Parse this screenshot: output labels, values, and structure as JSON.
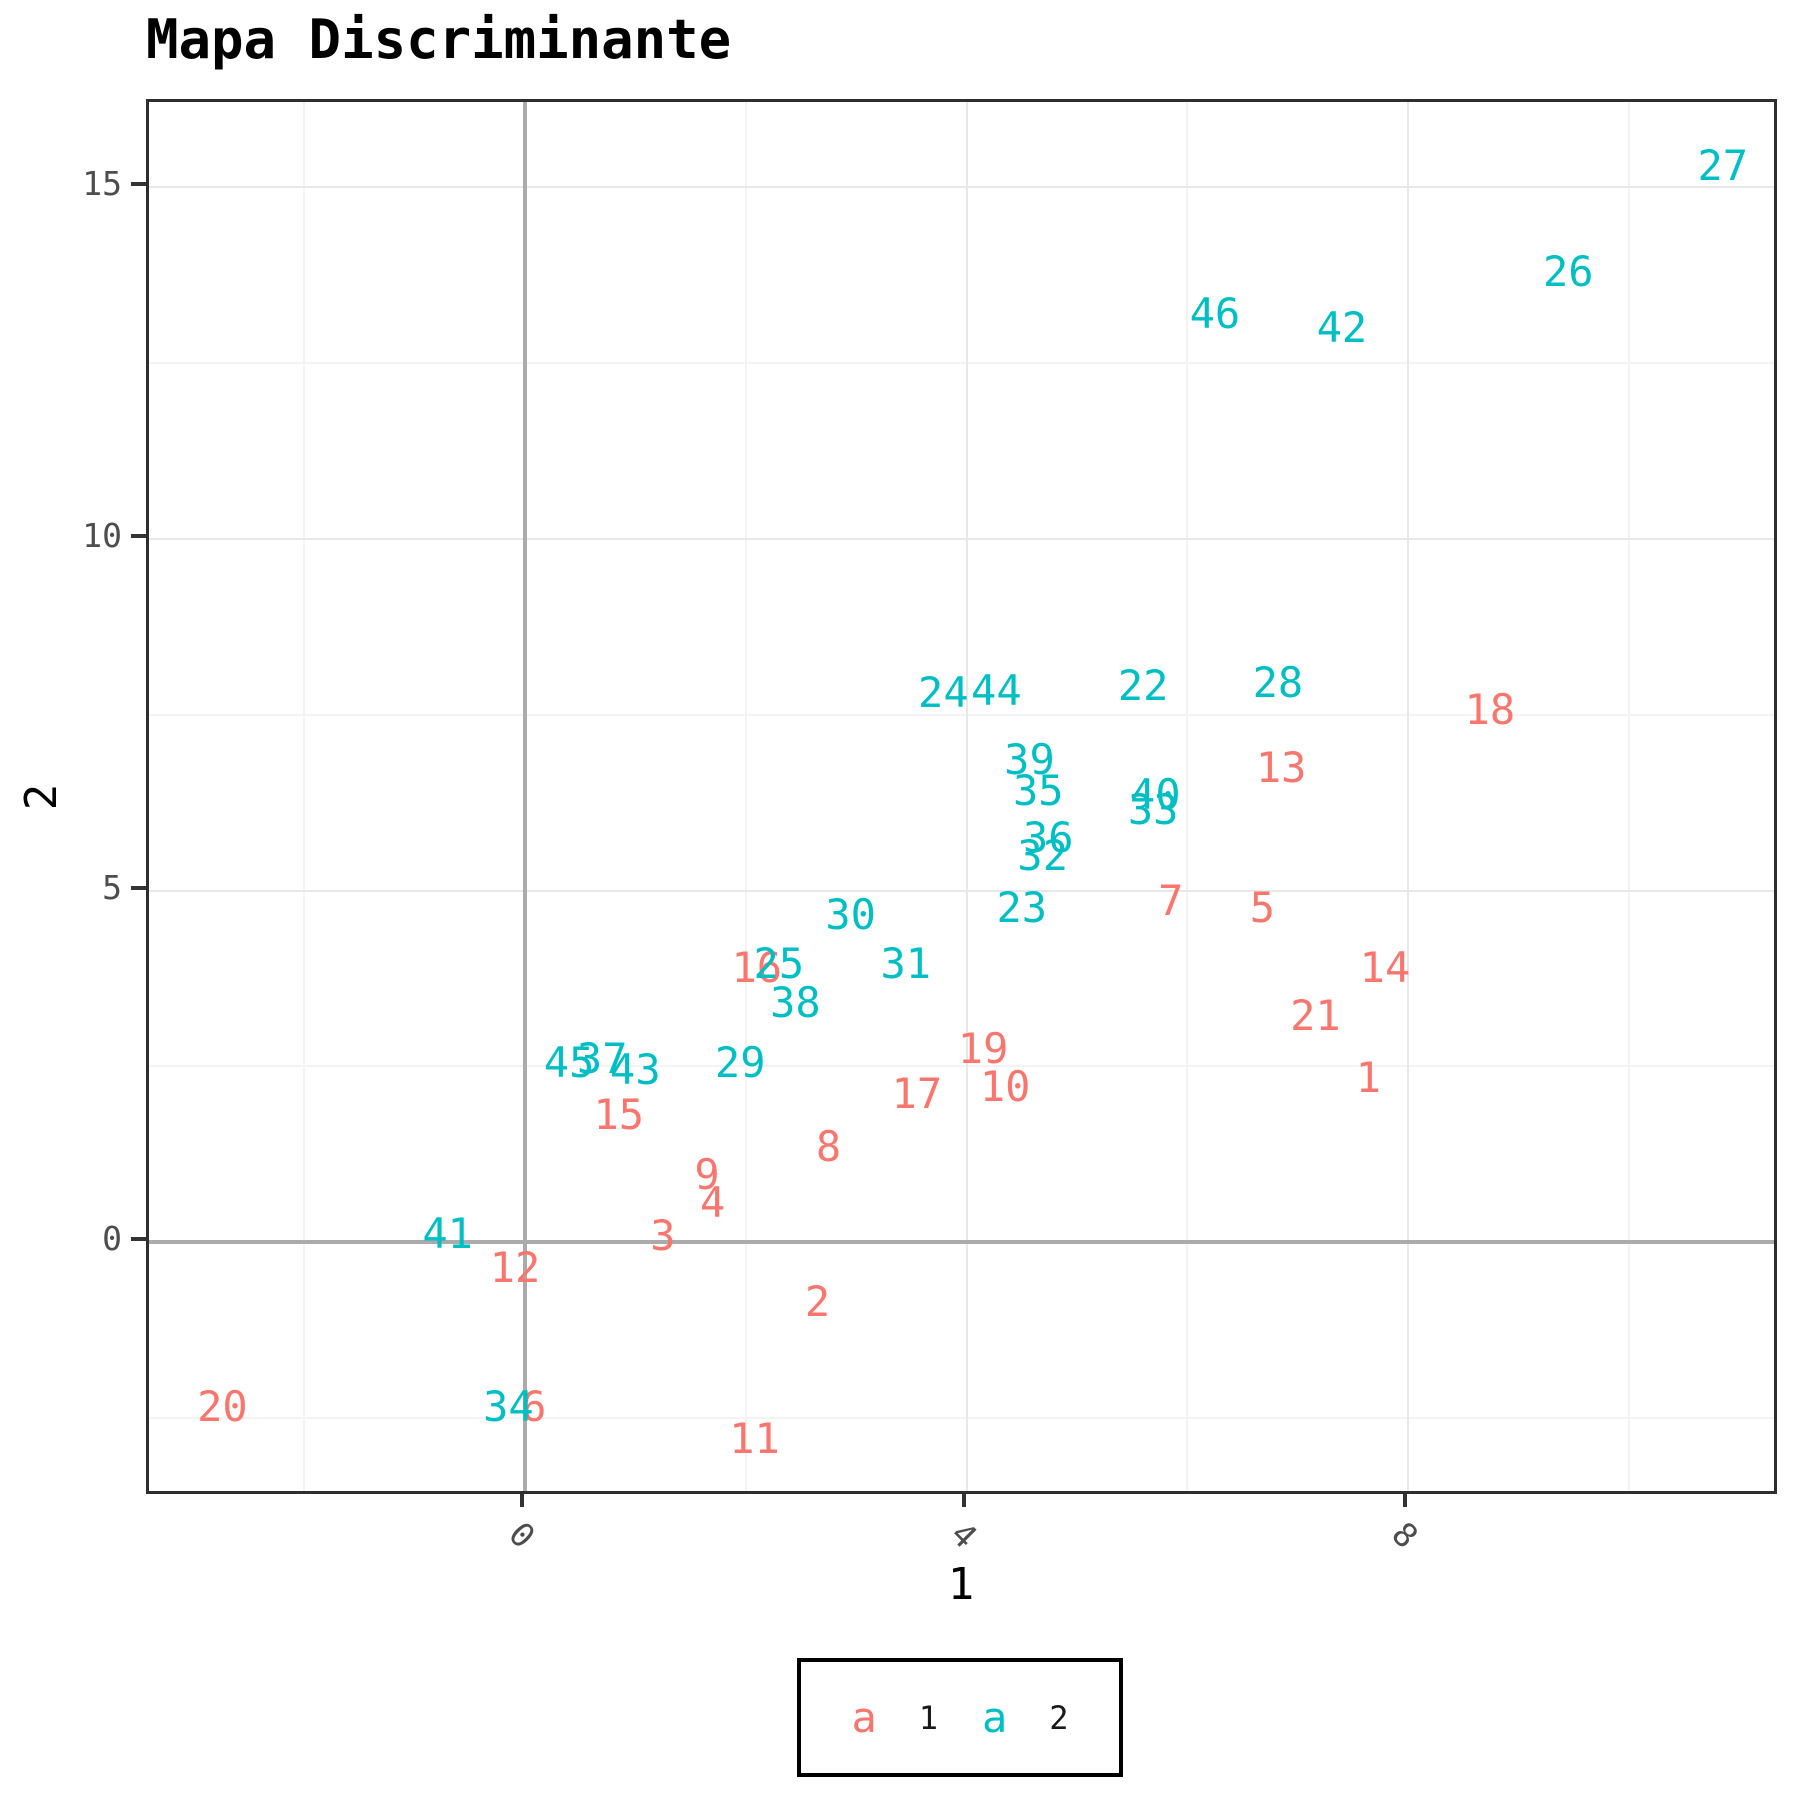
{
  "title": "Mapa Discriminante",
  "axes": {
    "x_title": "1",
    "y_title": "2",
    "x_ticks": [
      {
        "value": 0,
        "label": "0"
      },
      {
        "value": 4,
        "label": "4"
      },
      {
        "value": 8,
        "label": "8"
      }
    ],
    "y_ticks": [
      {
        "value": 0,
        "label": "0"
      },
      {
        "value": 5,
        "label": "5"
      },
      {
        "value": 10,
        "label": "10"
      },
      {
        "value": 15,
        "label": "15"
      }
    ]
  },
  "legend": {
    "items": [
      {
        "key": "a",
        "label": "1",
        "color": "#F8766D"
      },
      {
        "key": "a",
        "label": "2",
        "color": "#00BFC4"
      }
    ]
  },
  "colors": {
    "group1": "#F8766D",
    "group2": "#00BFC4",
    "axis_text": "#4d4d4d",
    "panel_border": "#2e2e2e",
    "grid_major": "#e8e8e8",
    "grid_minor": "#f3f3f3",
    "reference_line": "#ababab"
  },
  "chart_data": {
    "type": "scatter",
    "title": "Mapa Discriminante",
    "xlabel": "1",
    "ylabel": "2",
    "xlim": [
      -3.405,
      11.368
    ],
    "ylim": [
      -3.627,
      16.216
    ],
    "x_major": [
      0,
      4,
      8
    ],
    "x_minor": [
      -2,
      2,
      6,
      10
    ],
    "y_major": [
      0,
      5,
      10,
      15
    ],
    "y_minor": [
      -2.5,
      2.5,
      7.5,
      12.5
    ],
    "reference_lines": {
      "vline_x": 0,
      "hline_y": 0
    },
    "grid": true,
    "legend_position": "bottom",
    "point_geom": "text-label",
    "series": [
      {
        "name": "1",
        "color": "#F8766D",
        "points": [
          {
            "label": "1",
            "x": 7.64,
            "y": 2.33
          },
          {
            "label": "2",
            "x": 2.65,
            "y": -0.85
          },
          {
            "label": "3",
            "x": 1.25,
            "y": 0.08
          },
          {
            "label": "4",
            "x": 1.7,
            "y": 0.55
          },
          {
            "label": "5",
            "x": 6.68,
            "y": 4.75
          },
          {
            "label": "6",
            "x": 0.08,
            "y": -2.35
          },
          {
            "label": "7",
            "x": 5.85,
            "y": 4.85
          },
          {
            "label": "8",
            "x": 2.75,
            "y": 1.35
          },
          {
            "label": "9",
            "x": 1.65,
            "y": 0.95
          },
          {
            "label": "10",
            "x": 4.35,
            "y": 2.2
          },
          {
            "label": "11",
            "x": 2.08,
            "y": -2.8
          },
          {
            "label": "12",
            "x": -0.09,
            "y": -0.37
          },
          {
            "label": "13",
            "x": 6.85,
            "y": 6.74
          },
          {
            "label": "14",
            "x": 7.79,
            "y": 3.9
          },
          {
            "label": "15",
            "x": 0.85,
            "y": 1.8
          },
          {
            "label": "16",
            "x": 2.1,
            "y": 3.9
          },
          {
            "label": "17",
            "x": 3.55,
            "y": 2.1
          },
          {
            "label": "18",
            "x": 8.74,
            "y": 7.57
          },
          {
            "label": "19",
            "x": 4.15,
            "y": 2.75
          },
          {
            "label": "20",
            "x": -2.74,
            "y": -2.35
          },
          {
            "label": "21",
            "x": 7.16,
            "y": 3.21
          }
        ]
      },
      {
        "name": "2",
        "color": "#00BFC4",
        "points": [
          {
            "label": "22",
            "x": 5.6,
            "y": 7.91
          },
          {
            "label": "23",
            "x": 4.5,
            "y": 4.75
          },
          {
            "label": "24",
            "x": 3.79,
            "y": 7.81
          },
          {
            "label": "25",
            "x": 2.3,
            "y": 3.95
          },
          {
            "label": "26",
            "x": 9.45,
            "y": 13.8
          },
          {
            "label": "27",
            "x": 10.85,
            "y": 15.3
          },
          {
            "label": "28",
            "x": 6.82,
            "y": 7.95
          },
          {
            "label": "29",
            "x": 1.95,
            "y": 2.55
          },
          {
            "label": "30",
            "x": 2.95,
            "y": 4.65
          },
          {
            "label": "31",
            "x": 3.45,
            "y": 3.95
          },
          {
            "label": "32",
            "x": 4.69,
            "y": 5.49
          },
          {
            "label": "33",
            "x": 5.69,
            "y": 6.15
          },
          {
            "label": "34",
            "x": -0.15,
            "y": -2.35
          },
          {
            "label": "35",
            "x": 4.65,
            "y": 6.41
          },
          {
            "label": "36",
            "x": 4.74,
            "y": 5.75
          },
          {
            "label": "37",
            "x": 0.7,
            "y": 2.6
          },
          {
            "label": "38",
            "x": 2.45,
            "y": 3.4
          },
          {
            "label": "39",
            "x": 4.57,
            "y": 6.85
          },
          {
            "label": "40",
            "x": 5.71,
            "y": 6.36
          },
          {
            "label": "41",
            "x": -0.7,
            "y": 0.12
          },
          {
            "label": "42",
            "x": 7.4,
            "y": 13.0
          },
          {
            "label": "43",
            "x": 1.0,
            "y": 2.45
          },
          {
            "label": "44",
            "x": 4.27,
            "y": 7.84
          },
          {
            "label": "45",
            "x": 0.4,
            "y": 2.55
          },
          {
            "label": "46",
            "x": 6.25,
            "y": 13.2
          }
        ]
      }
    ]
  }
}
